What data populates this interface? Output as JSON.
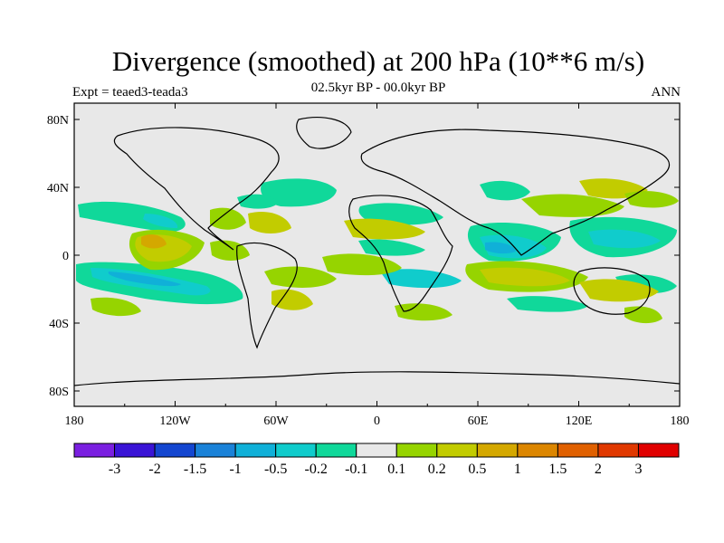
{
  "title": "Divergence (smoothed) at 200 hPa (10**6 m/s)",
  "subtitle": "02.5kyr BP - 00.0kyr BP",
  "left_label": "Expt = teaed3-teada3",
  "right_label": "ANN",
  "x_ticks": [
    "180",
    "120W",
    "60W",
    "0",
    "60E",
    "120E",
    "180"
  ],
  "y_ticks": [
    "80N",
    "40N",
    "0",
    "40S",
    "80S"
  ],
  "colorbar": {
    "colors": [
      "#7a1fe0",
      "#3a14d6",
      "#1446d0",
      "#1a82d8",
      "#10b0d8",
      "#10cccc",
      "#10d89a",
      "#e8e8e8",
      "#96d400",
      "#c2cc00",
      "#d4a800",
      "#dc8600",
      "#e06000",
      "#e03800",
      "#e00000"
    ],
    "labels": [
      "-3",
      "-2",
      "-1.5",
      "-1",
      "-0.5",
      "-0.2",
      "-0.1",
      "0.1",
      "0.2",
      "0.5",
      "1",
      "1.5",
      "2",
      "3"
    ]
  },
  "colors": {
    "background": "#e8e8e8",
    "positive_light": "#96d400",
    "positive_mid": "#c2cc00",
    "positive_strong": "#d4a800",
    "negative_light": "#10d89a",
    "negative_mid": "#10cccc",
    "negative_strong": "#10b0d8"
  }
}
